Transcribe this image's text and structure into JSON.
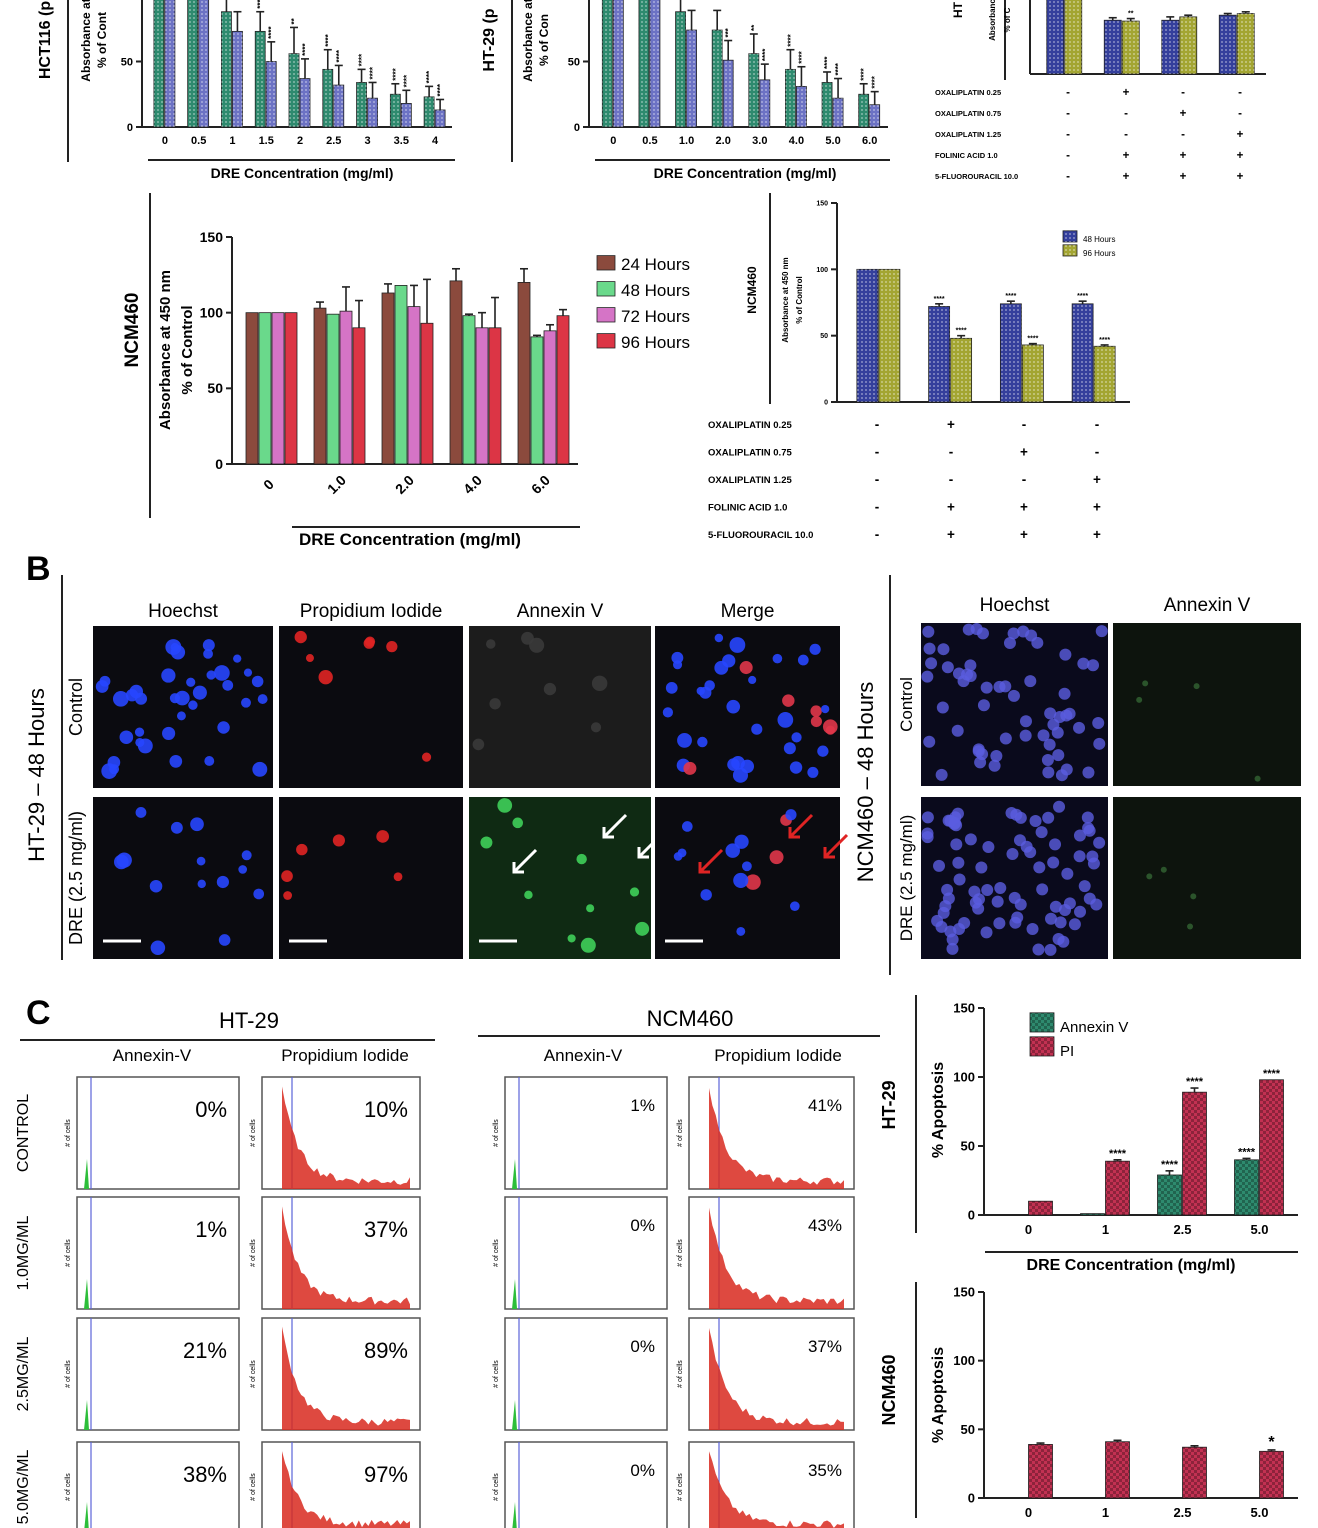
{
  "panel_letters": [
    "B",
    "C"
  ],
  "chart_data": [
    {
      "id": "hct116",
      "type": "bar",
      "row_label": "HCT116 (p",
      "ylabel_lines": [
        "Absorbance at",
        "% of Cont"
      ],
      "xlabel": "DRE Concentration (mg/ml)",
      "ylim": [
        0,
        100
      ],
      "yticks": [
        0,
        50
      ],
      "categories": [
        "0",
        "0.5",
        "1",
        "1.5",
        "2",
        "2.5",
        "3",
        "3.5",
        "4"
      ],
      "series": [
        {
          "values": [
            100,
            100,
            88,
            73,
            56,
            44,
            34,
            25,
            23
          ],
          "errors": [
            5,
            5,
            12,
            15,
            20,
            15,
            10,
            8,
            8
          ]
        },
        {
          "values": [
            100,
            100,
            73,
            50,
            37,
            32,
            22,
            18,
            13
          ],
          "errors": [
            5,
            5,
            15,
            15,
            15,
            15,
            12,
            10,
            8
          ]
        }
      ],
      "annotations": [
        [
          "",
          ""
        ],
        [
          "",
          ""
        ],
        [
          "",
          ""
        ],
        [
          "***",
          "****"
        ],
        [
          "**",
          "****"
        ],
        [
          "****",
          "****"
        ],
        [
          "****",
          "****"
        ],
        [
          "****",
          "****"
        ],
        [
          "****",
          "****"
        ]
      ],
      "colors": [
        "#2e8a6e",
        "#6c72c4"
      ]
    },
    {
      "id": "ht29",
      "type": "bar",
      "row_label": "HT-29 (p",
      "ylabel_lines": [
        "Absorbance at",
        "% of Con"
      ],
      "xlabel": "DRE Concentration (mg/ml)",
      "ylim": [
        0,
        100
      ],
      "yticks": [
        0,
        50
      ],
      "categories": [
        "0",
        "0.5",
        "1.0",
        "2.0",
        "3.0",
        "4.0",
        "5.0",
        "6.0"
      ],
      "series": [
        {
          "values": [
            100,
            100,
            88,
            74,
            56,
            44,
            34,
            25
          ],
          "errors": [
            5,
            5,
            12,
            15,
            15,
            15,
            8,
            8
          ]
        },
        {
          "values": [
            100,
            100,
            74,
            51,
            36,
            31,
            22,
            17
          ],
          "errors": [
            5,
            5,
            15,
            15,
            12,
            15,
            15,
            10
          ]
        }
      ],
      "annotations": [
        [
          "",
          ""
        ],
        [
          "",
          ""
        ],
        [
          "",
          ""
        ],
        [
          "",
          "***"
        ],
        [
          "**",
          "****"
        ],
        [
          "****",
          "****"
        ],
        [
          "****",
          "****"
        ],
        [
          "****",
          "****"
        ]
      ],
      "colors": [
        "#2e8a6e",
        "#6c72c4"
      ]
    },
    {
      "id": "ht29-chemo",
      "type": "bar",
      "row_label": "HT",
      "ylabel_lines": [
        "Absorbanc",
        "% of C"
      ],
      "ylim": [
        0,
        100
      ],
      "categories": [
        "",
        "",
        "",
        ""
      ],
      "series": [
        {
          "values": [
            100,
            64,
            64,
            70
          ],
          "errors": [
            3,
            3,
            4,
            2
          ]
        },
        {
          "values": [
            100,
            63,
            68,
            72
          ],
          "errors": [
            3,
            3,
            2,
            2
          ]
        }
      ],
      "annotations": [
        [
          "",
          ""
        ],
        [
          "",
          "**"
        ],
        [
          "",
          ""
        ],
        [
          "",
          ""
        ]
      ],
      "colors": [
        "#343f9c",
        "#a3a532"
      ],
      "treatments": [
        {
          "name": "OXALIPLATIN 0.25",
          "marks": [
            "-",
            "+",
            "-",
            "-"
          ]
        },
        {
          "name": "OXALIPLATIN 0.75",
          "marks": [
            "-",
            "-",
            "+",
            "-"
          ]
        },
        {
          "name": "OXALIPLATIN 1.25",
          "marks": [
            "-",
            "-",
            "-",
            "+"
          ]
        },
        {
          "name": "FOLINIC ACID 1.0",
          "marks": [
            "-",
            "+",
            "+",
            "+"
          ]
        },
        {
          "name": "5-FLUOROURACIL 10.0",
          "marks": [
            "-",
            "+",
            "+",
            "+"
          ]
        }
      ]
    },
    {
      "id": "ncm460-dre",
      "type": "bar",
      "row_label": "NCM460",
      "ylabel_lines": [
        "Absorbance at 450 nm",
        "% of Control"
      ],
      "xlabel": "DRE Concentration (mg/ml)",
      "ylim": [
        0,
        150
      ],
      "yticks": [
        0,
        50,
        100,
        150
      ],
      "categories": [
        "0",
        "1.0",
        "2.0",
        "4.0",
        "6.0"
      ],
      "series": [
        {
          "name": "24 Hours",
          "values": [
            100,
            103,
            113,
            121,
            120
          ],
          "errors": [
            0,
            4,
            6,
            8,
            9
          ]
        },
        {
          "name": "48 Hours",
          "values": [
            100,
            99,
            118,
            98,
            84
          ],
          "errors": [
            0,
            0,
            0,
            1,
            1
          ]
        },
        {
          "name": "72 Hours",
          "values": [
            100,
            101,
            104,
            90,
            88
          ],
          "errors": [
            0,
            16,
            14,
            10,
            4
          ]
        },
        {
          "name": "96 Hours",
          "values": [
            100,
            90,
            93,
            90,
            98
          ],
          "errors": [
            0,
            18,
            29,
            20,
            4
          ]
        }
      ],
      "legend_position": "right",
      "colors": [
        "#8b4a3d",
        "#6ad98b",
        "#d574c6",
        "#dc3545"
      ]
    },
    {
      "id": "ncm460-chemo",
      "type": "bar",
      "row_label": "NCM460",
      "ylabel_lines": [
        "Absorbance at 450 nm",
        "% of Control"
      ],
      "ylim": [
        0,
        150
      ],
      "yticks": [
        0,
        50,
        100,
        150
      ],
      "categories": [
        "",
        "",
        "",
        ""
      ],
      "series": [
        {
          "name": "48 Hours",
          "values": [
            100,
            72,
            74,
            74
          ],
          "errors": [
            0,
            2,
            2,
            2
          ]
        },
        {
          "name": "96 Hours",
          "values": [
            100,
            48,
            43,
            42
          ],
          "errors": [
            0,
            2,
            1,
            1
          ]
        }
      ],
      "annotations": [
        [
          "",
          ""
        ],
        [
          "****",
          "****"
        ],
        [
          "****",
          "****"
        ],
        [
          "****",
          "****"
        ]
      ],
      "legend_position": "top-right",
      "colors": [
        "#343f9c",
        "#a3a532"
      ],
      "treatments": [
        {
          "name": "OXALIPLATIN 0.25",
          "marks": [
            "-",
            "+",
            "-",
            "-"
          ]
        },
        {
          "name": "OXALIPLATIN 0.75",
          "marks": [
            "-",
            "-",
            "+",
            "-"
          ]
        },
        {
          "name": "OXALIPLATIN 1.25",
          "marks": [
            "-",
            "-",
            "-",
            "+"
          ]
        },
        {
          "name": "FOLINIC ACID 1.0",
          "marks": [
            "-",
            "+",
            "+",
            "+"
          ]
        },
        {
          "name": "5-FLUOROURACIL 10.0",
          "marks": [
            "-",
            "+",
            "+",
            "+"
          ]
        }
      ]
    },
    {
      "id": "ht29-apoptosis",
      "type": "bar",
      "row_label": "HT-29",
      "ylabel": "% Apoptosis",
      "xlabel": "DRE Concentration (mg/ml)",
      "ylim": [
        0,
        150
      ],
      "yticks": [
        0,
        50,
        100,
        150
      ],
      "categories": [
        "0",
        "1",
        "2.5",
        "5.0"
      ],
      "series": [
        {
          "name": "Annexin V",
          "values": [
            0,
            1,
            29,
            40
          ],
          "errors": [
            0,
            0,
            3,
            1
          ]
        },
        {
          "name": "PI",
          "values": [
            10,
            39,
            89,
            98
          ],
          "errors": [
            0,
            1,
            3,
            0
          ]
        }
      ],
      "annotations": [
        [
          "",
          ""
        ],
        [
          "",
          "****"
        ],
        [
          "****",
          "****"
        ],
        [
          "****",
          "****"
        ]
      ],
      "legend_position": "top-left",
      "colors": [
        "#2e8a6e",
        "#c23152"
      ]
    },
    {
      "id": "ncm460-apoptosis",
      "type": "bar",
      "row_label": "NCM460",
      "ylabel": "% Apoptosis",
      "ylim": [
        0,
        150
      ],
      "yticks": [
        0,
        50,
        100,
        150
      ],
      "categories": [
        "0",
        "1",
        "2.5",
        "5.0"
      ],
      "series": [
        {
          "name": "Annexin V",
          "values": [
            0,
            0,
            0,
            0
          ],
          "errors": [
            0,
            0,
            0,
            0
          ]
        },
        {
          "name": "PI",
          "values": [
            39,
            41,
            37,
            34
          ],
          "errors": [
            1,
            1,
            1,
            1
          ]
        }
      ],
      "annotations": [
        [
          "",
          ""
        ],
        [
          "",
          ""
        ],
        [
          "",
          ""
        ],
        [
          "",
          "*"
        ]
      ],
      "colors": [
        "#2e8a6e",
        "#c23152"
      ]
    }
  ],
  "microscopy": {
    "ht29": {
      "side_label": "HT-29 – 48 Hours",
      "columns": [
        "Hoechst",
        "Propidium Iodide",
        "Annexin V",
        "Merge"
      ],
      "rows": [
        "Control",
        "DRE (2.5 mg/ml)"
      ]
    },
    "ncm460": {
      "side_label": "NCM460 – 48 Hours",
      "columns": [
        "Hoechst",
        "Annexin V"
      ],
      "rows": [
        "Control",
        "DRE (2.5 mg/ml)"
      ]
    }
  },
  "flow_cytometry": {
    "ht29": {
      "title": "HT-29",
      "columns": [
        "Annexin-V",
        "Propidium Iodide"
      ],
      "rows": [
        {
          "label": "CONTROL",
          "annexin": "0%",
          "pi": "10%"
        },
        {
          "label": "1.0MG/ML",
          "annexin": "1%",
          "pi": "37%"
        },
        {
          "label": "2.5MG/ML",
          "annexin": "21%",
          "pi": "89%"
        },
        {
          "label": "5.0MG/ML",
          "annexin": "38%",
          "pi": "97%"
        }
      ]
    },
    "ncm460": {
      "title": "NCM460",
      "columns": [
        "Annexin-V",
        "Propidium Iodide"
      ],
      "rows": [
        {
          "annexin": "1%",
          "pi": "41%"
        },
        {
          "annexin": "0%",
          "pi": "43%"
        },
        {
          "annexin": "0%",
          "pi": "37%"
        },
        {
          "annexin": "0%",
          "pi": "35%"
        }
      ]
    },
    "y_axis_label": "# of cells"
  }
}
